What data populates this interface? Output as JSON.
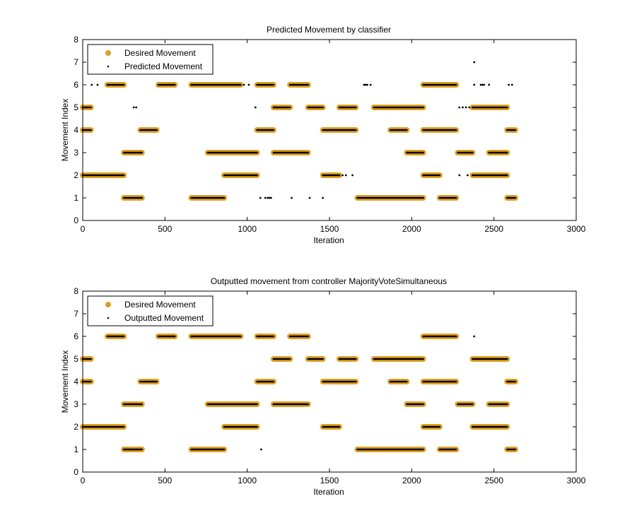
{
  "chart_data": [
    {
      "type": "scatter",
      "title": "Predicted Movement by classifier",
      "xlabel": "Iteration",
      "ylabel": "Movement Index",
      "xlim": [
        0,
        3000
      ],
      "ylim": [
        0,
        8
      ],
      "xticks": [
        "0",
        "500",
        "1000",
        "1500",
        "2000",
        "2500",
        "3000"
      ],
      "yticks": [
        "0",
        "1",
        "2",
        "3",
        "4",
        "5",
        "6",
        "7",
        "8"
      ],
      "legend": {
        "placement": "top-left",
        "entries": [
          "Desired Movement",
          "Predicted Movement"
        ]
      },
      "desired_segments": [
        {
          "x_start": 0,
          "x_end": 50,
          "y": 5
        },
        {
          "x_start": 0,
          "x_end": 50,
          "y": 4
        },
        {
          "x_start": 0,
          "x_end": 250,
          "y": 2
        },
        {
          "x_start": 150,
          "x_end": 250,
          "y": 6
        },
        {
          "x_start": 250,
          "x_end": 360,
          "y": 3
        },
        {
          "x_start": 250,
          "x_end": 360,
          "y": 1
        },
        {
          "x_start": 350,
          "x_end": 450,
          "y": 4
        },
        {
          "x_start": 460,
          "x_end": 560,
          "y": 6
        },
        {
          "x_start": 660,
          "x_end": 860,
          "y": 1
        },
        {
          "x_start": 660,
          "x_end": 960,
          "y": 6
        },
        {
          "x_start": 760,
          "x_end": 1060,
          "y": 3
        },
        {
          "x_start": 860,
          "x_end": 1060,
          "y": 2
        },
        {
          "x_start": 1060,
          "x_end": 1160,
          "y": 6
        },
        {
          "x_start": 1060,
          "x_end": 1160,
          "y": 4
        },
        {
          "x_start": 1160,
          "x_end": 1260,
          "y": 5
        },
        {
          "x_start": 1160,
          "x_end": 1370,
          "y": 3
        },
        {
          "x_start": 1260,
          "x_end": 1370,
          "y": 6
        },
        {
          "x_start": 1370,
          "x_end": 1460,
          "y": 5
        },
        {
          "x_start": 1460,
          "x_end": 1560,
          "y": 2
        },
        {
          "x_start": 1460,
          "x_end": 1660,
          "y": 4
        },
        {
          "x_start": 1560,
          "x_end": 1660,
          "y": 5
        },
        {
          "x_start": 1670,
          "x_end": 2070,
          "y": 1
        },
        {
          "x_start": 1770,
          "x_end": 2070,
          "y": 5
        },
        {
          "x_start": 1870,
          "x_end": 1970,
          "y": 4
        },
        {
          "x_start": 1970,
          "x_end": 2070,
          "y": 3
        },
        {
          "x_start": 2070,
          "x_end": 2270,
          "y": 6
        },
        {
          "x_start": 2070,
          "x_end": 2270,
          "y": 4
        },
        {
          "x_start": 2070,
          "x_end": 2170,
          "y": 2
        },
        {
          "x_start": 2170,
          "x_end": 2270,
          "y": 1
        },
        {
          "x_start": 2280,
          "x_end": 2370,
          "y": 3
        },
        {
          "x_start": 2370,
          "x_end": 2580,
          "y": 5
        },
        {
          "x_start": 2370,
          "x_end": 2580,
          "y": 2
        },
        {
          "x_start": 2470,
          "x_end": 2580,
          "y": 3
        },
        {
          "x_start": 2580,
          "x_end": 2630,
          "y": 4
        },
        {
          "x_start": 2580,
          "x_end": 2630,
          "y": 1
        }
      ],
      "extra_points": [
        {
          "x": 55,
          "y": 6
        },
        {
          "x": 90,
          "y": 6
        },
        {
          "x": 310,
          "y": 5
        },
        {
          "x": 325,
          "y": 5
        },
        {
          "x": 980,
          "y": 6
        },
        {
          "x": 1010,
          "y": 6
        },
        {
          "x": 1050,
          "y": 5
        },
        {
          "x": 1080,
          "y": 1
        },
        {
          "x": 1110,
          "y": 1
        },
        {
          "x": 1125,
          "y": 1
        },
        {
          "x": 1135,
          "y": 1
        },
        {
          "x": 1145,
          "y": 1
        },
        {
          "x": 1270,
          "y": 1
        },
        {
          "x": 1380,
          "y": 1
        },
        {
          "x": 1460,
          "y": 1
        },
        {
          "x": 1580,
          "y": 2
        },
        {
          "x": 1600,
          "y": 2
        },
        {
          "x": 1640,
          "y": 2
        },
        {
          "x": 1710,
          "y": 6
        },
        {
          "x": 1720,
          "y": 6
        },
        {
          "x": 1730,
          "y": 6
        },
        {
          "x": 1750,
          "y": 6
        },
        {
          "x": 2290,
          "y": 5
        },
        {
          "x": 2310,
          "y": 5
        },
        {
          "x": 2330,
          "y": 5
        },
        {
          "x": 2350,
          "y": 5
        },
        {
          "x": 2290,
          "y": 2
        },
        {
          "x": 2340,
          "y": 2
        },
        {
          "x": 2380,
          "y": 7
        },
        {
          "x": 2380,
          "y": 6
        },
        {
          "x": 2420,
          "y": 6
        },
        {
          "x": 2430,
          "y": 6
        },
        {
          "x": 2440,
          "y": 6
        },
        {
          "x": 2470,
          "y": 6
        },
        {
          "x": 2590,
          "y": 6
        },
        {
          "x": 2610,
          "y": 6
        }
      ]
    },
    {
      "type": "scatter",
      "title": "Outputted movement from controller MajorityVoteSimultaneous",
      "xlabel": "Iteration",
      "ylabel": "Movement Index",
      "xlim": [
        0,
        3000
      ],
      "ylim": [
        0,
        8
      ],
      "xticks": [
        "0",
        "500",
        "1000",
        "1500",
        "2000",
        "2500",
        "3000"
      ],
      "yticks": [
        "0",
        "1",
        "2",
        "3",
        "4",
        "5",
        "6",
        "7",
        "8"
      ],
      "legend": {
        "placement": "top-left",
        "entries": [
          "Desired Movement",
          "Outputted Movement"
        ]
      },
      "desired_segments": [
        {
          "x_start": 0,
          "x_end": 50,
          "y": 5
        },
        {
          "x_start": 0,
          "x_end": 50,
          "y": 4
        },
        {
          "x_start": 0,
          "x_end": 250,
          "y": 2
        },
        {
          "x_start": 150,
          "x_end": 250,
          "y": 6
        },
        {
          "x_start": 250,
          "x_end": 360,
          "y": 3
        },
        {
          "x_start": 250,
          "x_end": 360,
          "y": 1
        },
        {
          "x_start": 350,
          "x_end": 450,
          "y": 4
        },
        {
          "x_start": 460,
          "x_end": 560,
          "y": 6
        },
        {
          "x_start": 660,
          "x_end": 860,
          "y": 1
        },
        {
          "x_start": 660,
          "x_end": 960,
          "y": 6
        },
        {
          "x_start": 760,
          "x_end": 1060,
          "y": 3
        },
        {
          "x_start": 860,
          "x_end": 1060,
          "y": 2
        },
        {
          "x_start": 1060,
          "x_end": 1160,
          "y": 6
        },
        {
          "x_start": 1060,
          "x_end": 1160,
          "y": 4
        },
        {
          "x_start": 1160,
          "x_end": 1260,
          "y": 5
        },
        {
          "x_start": 1160,
          "x_end": 1370,
          "y": 3
        },
        {
          "x_start": 1260,
          "x_end": 1370,
          "y": 6
        },
        {
          "x_start": 1370,
          "x_end": 1460,
          "y": 5
        },
        {
          "x_start": 1460,
          "x_end": 1560,
          "y": 2
        },
        {
          "x_start": 1460,
          "x_end": 1660,
          "y": 4
        },
        {
          "x_start": 1560,
          "x_end": 1660,
          "y": 5
        },
        {
          "x_start": 1670,
          "x_end": 2070,
          "y": 1
        },
        {
          "x_start": 1770,
          "x_end": 2070,
          "y": 5
        },
        {
          "x_start": 1870,
          "x_end": 1970,
          "y": 4
        },
        {
          "x_start": 1970,
          "x_end": 2070,
          "y": 3
        },
        {
          "x_start": 2070,
          "x_end": 2270,
          "y": 6
        },
        {
          "x_start": 2070,
          "x_end": 2270,
          "y": 4
        },
        {
          "x_start": 2070,
          "x_end": 2170,
          "y": 2
        },
        {
          "x_start": 2170,
          "x_end": 2270,
          "y": 1
        },
        {
          "x_start": 2280,
          "x_end": 2370,
          "y": 3
        },
        {
          "x_start": 2370,
          "x_end": 2580,
          "y": 5
        },
        {
          "x_start": 2370,
          "x_end": 2580,
          "y": 2
        },
        {
          "x_start": 2470,
          "x_end": 2580,
          "y": 3
        },
        {
          "x_start": 2580,
          "x_end": 2630,
          "y": 4
        },
        {
          "x_start": 2580,
          "x_end": 2630,
          "y": 1
        }
      ],
      "extra_points": [
        {
          "x": 1085,
          "y": 1
        },
        {
          "x": 2380,
          "y": 6
        }
      ]
    }
  ],
  "colors": {
    "desired": "#e0a020",
    "predicted": "#000000",
    "axis": "#000000",
    "background": "#ffffff"
  }
}
